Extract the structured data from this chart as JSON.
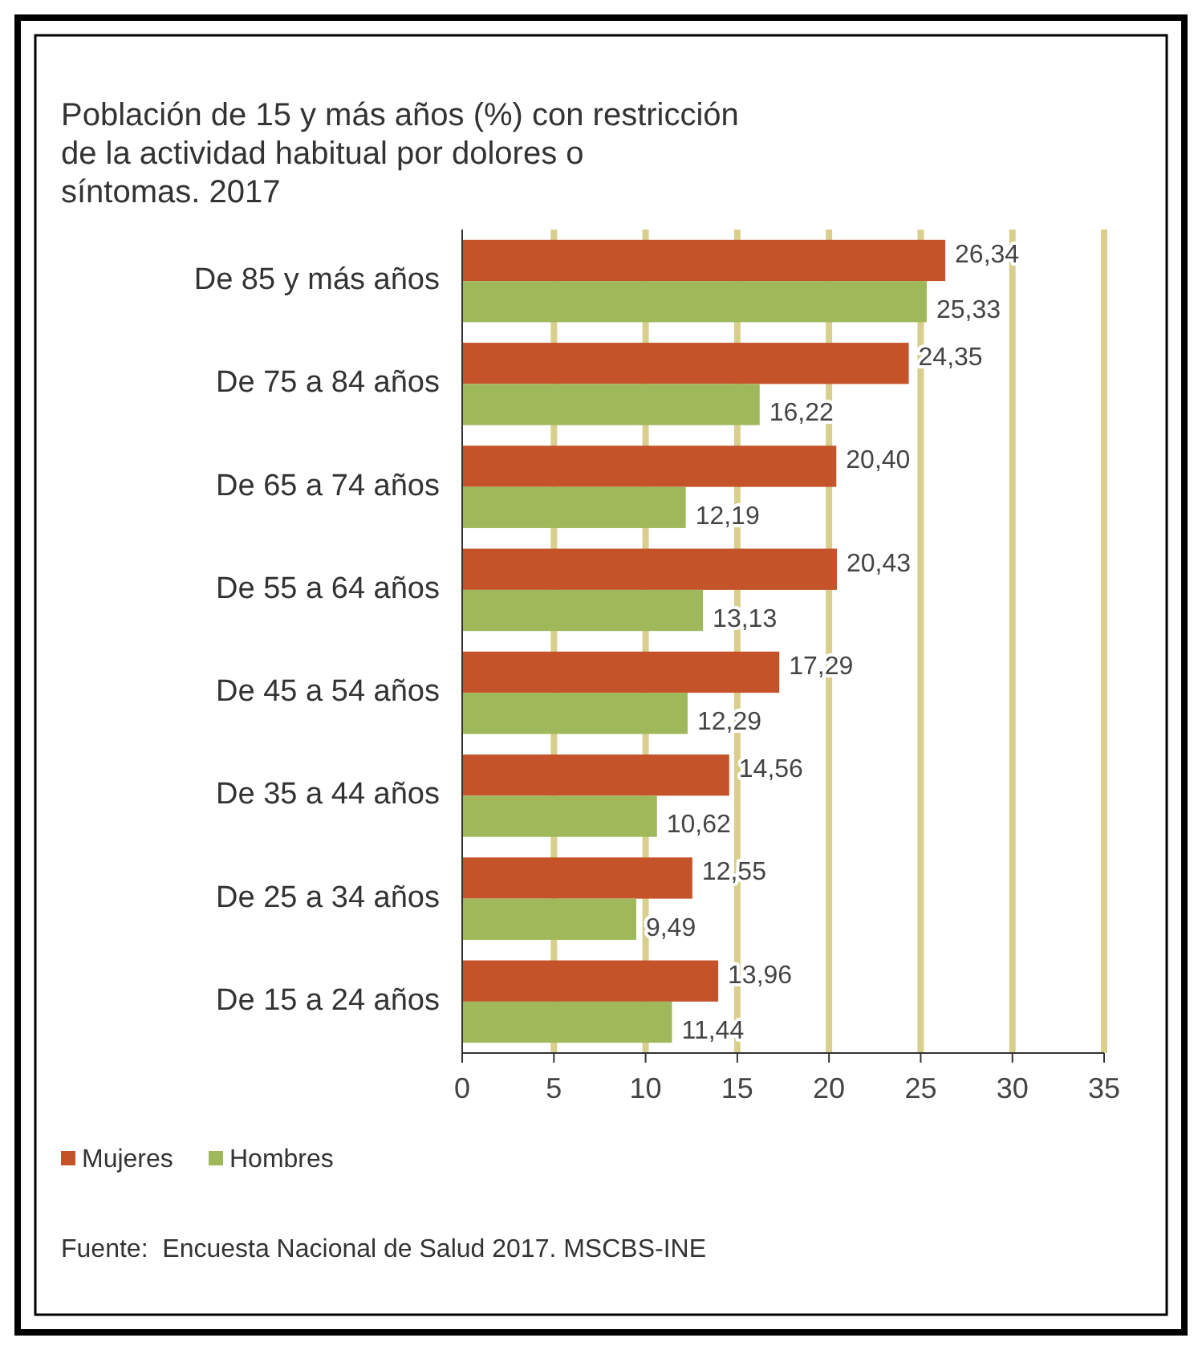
{
  "chart_data": {
    "type": "bar",
    "orientation": "horizontal",
    "title": "Población de 15 y más años (%) con restricción de la actividad habitual por dolores o síntomas. 2017",
    "categories": [
      "De 85 y más años",
      "De 75 a 84 años",
      "De 65 a 74 años",
      "De 55 a 64 años",
      "De 45 a 54 años",
      "De 35 a 44 años",
      "De 25 a 34 años",
      "De 15 a 24 años"
    ],
    "series": [
      {
        "name": "Mujeres",
        "color": "#c4532a",
        "values": [
          26.34,
          24.35,
          20.4,
          20.43,
          17.29,
          14.56,
          12.55,
          13.96
        ],
        "value_labels": [
          "26,34",
          "24,35",
          "20,40",
          "20,43",
          "17,29",
          "14,56",
          "12,55",
          "13,96"
        ]
      },
      {
        "name": "Hombres",
        "color": "#9fb85a",
        "values": [
          25.33,
          16.22,
          12.19,
          13.13,
          12.29,
          10.62,
          9.49,
          11.44
        ],
        "value_labels": [
          "25,33",
          "16,22",
          "12,19",
          "13,13",
          "12,29",
          "10,62",
          "9,49",
          "11,44"
        ]
      }
    ],
    "xlim": [
      0,
      35
    ],
    "xticks": [
      0,
      5,
      10,
      15,
      20,
      25,
      30,
      35
    ],
    "grid": "x",
    "legend": "bottom left",
    "annotations": [
      "Fuente:  Encuesta Nacional de Salud 2017. MSCBS-INE"
    ]
  }
}
